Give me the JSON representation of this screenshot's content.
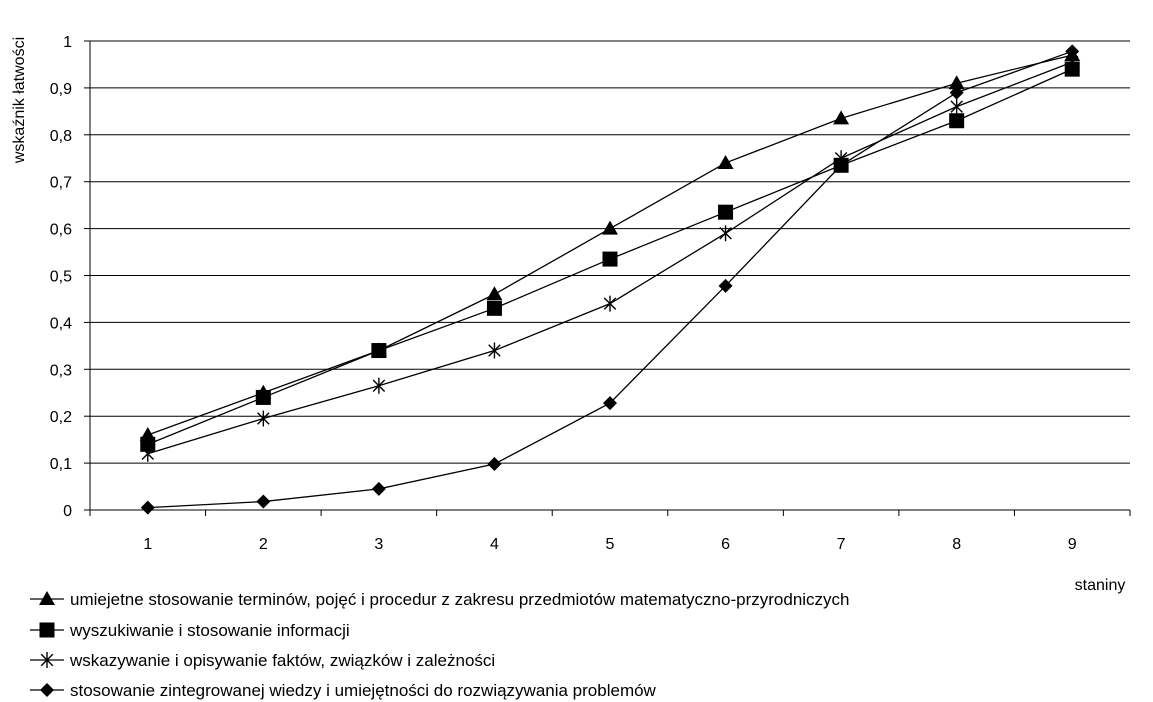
{
  "chart_data": {
    "type": "line",
    "x": [
      1,
      2,
      3,
      4,
      5,
      6,
      7,
      8,
      9
    ],
    "xlabel": "staniny",
    "ylabel": "wskaźnik łatwości",
    "ylim": [
      0,
      1
    ],
    "yticks": [
      "0",
      "0,1",
      "0,2",
      "0,3",
      "0,4",
      "0,5",
      "0,6",
      "0,7",
      "0,8",
      "0,9",
      "1"
    ],
    "xticks": [
      "1",
      "2",
      "3",
      "4",
      "5",
      "6",
      "7",
      "8",
      "9"
    ],
    "grid": "horizontal",
    "legend": "bottom",
    "series": [
      {
        "name": "umiejetne stosowanie terminów, pojęć i procedur z zakresu przedmiotów matematyczno-przyrodniczych",
        "marker": "triangle",
        "values": [
          0.16,
          0.25,
          0.34,
          0.46,
          0.6,
          0.74,
          0.835,
          0.91,
          0.97
        ]
      },
      {
        "name": "wyszukiwanie i stosowanie informacji",
        "marker": "square",
        "values": [
          0.14,
          0.24,
          0.34,
          0.43,
          0.535,
          0.635,
          0.735,
          0.83,
          0.94
        ]
      },
      {
        "name": "wskazywanie i opisywanie faktów, związków i zależności",
        "marker": "asterisk",
        "values": [
          0.12,
          0.195,
          0.265,
          0.34,
          0.44,
          0.59,
          0.75,
          0.86,
          0.955
        ]
      },
      {
        "name": "stosowanie zintegrowanej wiedzy i umiejętności do rozwiązywania problemów",
        "marker": "diamond",
        "values": [
          0.005,
          0.018,
          0.045,
          0.098,
          0.228,
          0.478,
          0.735,
          0.89,
          0.978
        ]
      }
    ],
    "line_color": "#000000",
    "grid_color": "#000000"
  }
}
